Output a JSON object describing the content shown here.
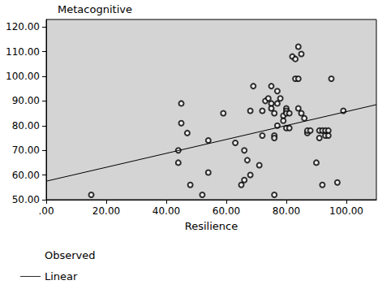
{
  "chart_data": {
    "type": "scatter",
    "title": "Metacognitive",
    "x_label": "Resilience",
    "xlim": [
      0,
      110
    ],
    "ylim": [
      50,
      123
    ],
    "xticks": [
      {
        "value": 0,
        "label": ".00"
      },
      {
        "value": 20,
        "label": "20.00"
      },
      {
        "value": 40,
        "label": "40.00"
      },
      {
        "value": 60,
        "label": "60.00"
      },
      {
        "value": 80,
        "label": "80.00"
      },
      {
        "value": 100,
        "label": "100.00"
      }
    ],
    "yticks": [
      {
        "value": 50,
        "label": "50.00"
      },
      {
        "value": 60,
        "label": "60.00"
      },
      {
        "value": 70,
        "label": "70.00"
      },
      {
        "value": 80,
        "label": "80.00"
      },
      {
        "value": 90,
        "label": "90.00"
      },
      {
        "value": 100,
        "label": "100.00"
      },
      {
        "value": 110,
        "label": "110.00"
      },
      {
        "value": 120,
        "label": "120.00"
      }
    ],
    "grid": false,
    "legend": "bottom-left",
    "series": [
      {
        "name": "Observed",
        "type": "scatter",
        "marker": "circle",
        "color": "#000000",
        "x": [
          15,
          44,
          44,
          45,
          45,
          47,
          48,
          52,
          54,
          54,
          59,
          63,
          65,
          66,
          66,
          67,
          68,
          68,
          69,
          71,
          72,
          73,
          74,
          75,
          75,
          75,
          76,
          76,
          76,
          77,
          77,
          77,
          78,
          79,
          79,
          80,
          80,
          80,
          80,
          81,
          81,
          82,
          83,
          83,
          84,
          84,
          84,
          85,
          85,
          86,
          87,
          87,
          88,
          90,
          91,
          91,
          92,
          92,
          93,
          93,
          94,
          94,
          95,
          97,
          99,
          76,
          72
        ],
        "values": [
          52,
          70,
          65,
          89,
          81,
          77,
          56,
          52,
          74,
          61,
          85,
          73,
          56,
          58,
          70,
          66,
          86,
          60,
          96,
          64,
          86,
          90,
          91,
          96,
          89,
          87,
          85,
          76,
          52,
          80,
          94,
          89,
          91,
          84,
          82,
          87,
          86,
          85,
          79,
          85,
          79,
          108,
          107,
          99,
          112,
          87,
          99,
          109,
          85,
          83,
          77,
          78,
          78,
          65,
          75,
          78,
          78,
          56,
          78,
          76,
          78,
          76,
          99,
          57,
          86,
          75,
          76
        ]
      },
      {
        "name": "Linear",
        "type": "line",
        "line_style": "solid",
        "color": "#000000",
        "x": [
          0,
          110
        ],
        "values": [
          57.5,
          88.5
        ]
      }
    ]
  }
}
